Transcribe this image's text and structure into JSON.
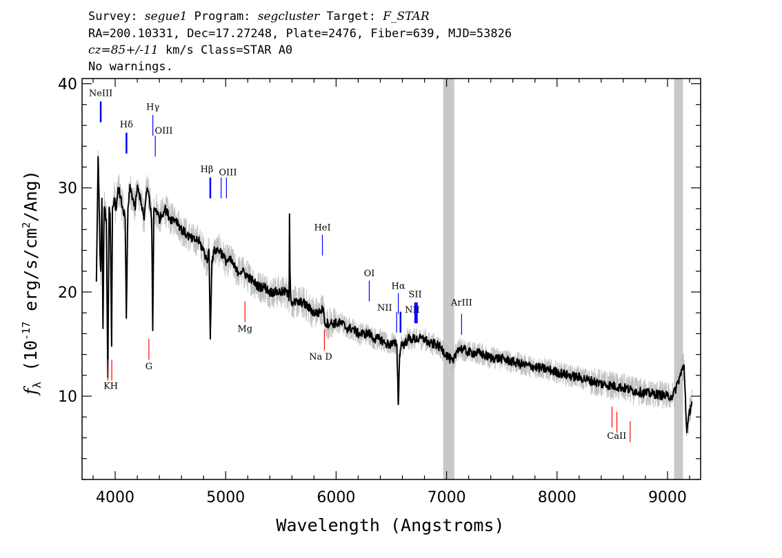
{
  "header": {
    "line1": [
      {
        "text": "Survey: "
      },
      {
        "text": "segue1",
        "italic": true
      },
      {
        "text": " Program: "
      },
      {
        "text": "segcluster",
        "italic": true
      },
      {
        "text": " Target: "
      },
      {
        "text": "F_STAR",
        "italic": true
      }
    ],
    "line2": "RA=200.10331, Dec=17.27248, Plate=2476, Fiber=639, MJD=53826",
    "line3": [
      {
        "text": "cz=85+/-11",
        "italic": true
      },
      {
        "text": " km/s Class=STAR A0"
      }
    ],
    "line4": "No warnings."
  },
  "chart_data": {
    "type": "line",
    "xlabel": "Wavelength (Angstroms)",
    "ylabel_parts": {
      "f": "f",
      "sub": "λ",
      "pre": " (10",
      "exp1": "-17",
      "mid": " erg/s/cm",
      "exp2": "2",
      "post": "/Ang)"
    },
    "xlim": [
      3700,
      9300
    ],
    "ylim": [
      2,
      40.5
    ],
    "xticks": [
      4000,
      5000,
      6000,
      7000,
      8000,
      9000
    ],
    "yticks": [
      10,
      20,
      30,
      40
    ],
    "masked_bands": [
      [
        6970,
        7070
      ],
      [
        9060,
        9140
      ]
    ],
    "colors": {
      "raw": "#c0c0c0",
      "smooth": "#000000",
      "emission": "#0000ff",
      "absorption": "#ff0000",
      "band": "#c8c8c8"
    },
    "series": [
      {
        "role": "smoothed flux",
        "x": [
          3830,
          3845,
          3855,
          3862,
          3870,
          3880,
          3889,
          3900,
          3920,
          3933,
          3945,
          3955,
          3968,
          3975,
          3990,
          4010,
          4030,
          4050,
          4070,
          4090,
          4101,
          4115,
          4135,
          4160,
          4180,
          4200,
          4230,
          4260,
          4290,
          4310,
          4330,
          4340,
          4350,
          4370,
          4400,
          4450,
          4500,
          4550,
          4600,
          4650,
          4700,
          4750,
          4800,
          4830,
          4850,
          4861,
          4875,
          4900,
          4950,
          5000,
          5050,
          5100,
          5150,
          5200,
          5250,
          5300,
          5350,
          5400,
          5450,
          5500,
          5550,
          5575,
          5578,
          5582,
          5590,
          5600,
          5650,
          5700,
          5750,
          5800,
          5850,
          5880,
          5893,
          5900,
          5950,
          6000,
          6050,
          6100,
          6150,
          6200,
          6250,
          6300,
          6350,
          6400,
          6450,
          6500,
          6530,
          6550,
          6563,
          6575,
          6590,
          6620,
          6650,
          6700,
          6750,
          6800,
          6850,
          6900,
          6950,
          7060,
          7100,
          7150,
          7200,
          7300,
          7400,
          7500,
          7600,
          7700,
          7800,
          7900,
          8000,
          8100,
          8200,
          8300,
          8400,
          8500,
          8600,
          8700,
          8800,
          8900,
          9000,
          9050,
          9150,
          9175,
          9200,
          9220
        ],
        "y": [
          21,
          33,
          28,
          24,
          22,
          29,
          16.5,
          28,
          27,
          11.8,
          28,
          27,
          14.8,
          28,
          29,
          28,
          30,
          29,
          28,
          27,
          17.5,
          28,
          30,
          29,
          28,
          30,
          29,
          27,
          30,
          29,
          27,
          16.3,
          28,
          28,
          27,
          28,
          27,
          27,
          26,
          25.5,
          25,
          25,
          24,
          23,
          24,
          15.5,
          23,
          24,
          24,
          23,
          23,
          22,
          22,
          21.5,
          21,
          20.5,
          20.5,
          20,
          20,
          20,
          20,
          19.5,
          27.5,
          22,
          19.5,
          19,
          19,
          19,
          18.5,
          18,
          18,
          18.5,
          17.5,
          17,
          17,
          17,
          17,
          16.5,
          16.5,
          16,
          16,
          16,
          15.5,
          15.5,
          15,
          15,
          15,
          15,
          9.2,
          14,
          15,
          15,
          15.5,
          15.5,
          15.5,
          15.5,
          15,
          15,
          14.6,
          13.2,
          14.6,
          14.5,
          14.2,
          14.1,
          13.7,
          13.6,
          13.3,
          13,
          12.8,
          12.6,
          12.3,
          12,
          11.8,
          11.5,
          11.2,
          11,
          10.8,
          10.5,
          10.3,
          10.2,
          10,
          10,
          13,
          6.5,
          8.5,
          9.5
        ]
      }
    ],
    "emission_lines": [
      {
        "label": "NeIII",
        "x": 3869,
        "y0": 36.3,
        "y1": 38.3,
        "lx": 3869,
        "ly": 38.8,
        "bold": true
      },
      {
        "label": "Hδ",
        "x": 4102,
        "y0": 33.3,
        "y1": 35.3,
        "lx": 4102,
        "ly": 35.8,
        "bold": true
      },
      {
        "label": "Hγ",
        "x": 4341,
        "y0": 35.0,
        "y1": 37.0,
        "lx": 4341,
        "ly": 37.5,
        "bold": false
      },
      {
        "label": "OIII",
        "x": 4363,
        "y0": 33.0,
        "y1": 35.0,
        "lx": 4440,
        "ly": 35.2,
        "bold": false
      },
      {
        "label": "Hβ",
        "x": 4861,
        "y0": 29.0,
        "y1": 31.0,
        "lx": 4830,
        "ly": 31.5,
        "bold": true
      },
      {
        "label": "OIII",
        "x": 4959,
        "y0": 29.0,
        "y1": 31.0,
        "lx": 5020,
        "ly": 31.2,
        "bold": false
      },
      {
        "label": "OIII",
        "x": 5007,
        "y0": 29.0,
        "y1": 31.0,
        "lx": null,
        "ly": null,
        "bold": false
      },
      {
        "label": "HeI",
        "x": 5876,
        "y0": 23.5,
        "y1": 25.5,
        "lx": 5876,
        "ly": 25.9,
        "bold": false
      },
      {
        "label": "OI",
        "x": 6300,
        "y0": 19.1,
        "y1": 21.1,
        "lx": 6300,
        "ly": 21.5,
        "bold": false
      },
      {
        "label": "NII",
        "x": 6548,
        "y0": 16.1,
        "y1": 18.1,
        "lx": 6440,
        "ly": 18.2,
        "bold": false
      },
      {
        "label": "Hα",
        "x": 6563,
        "y0": 17.9,
        "y1": 19.9,
        "lx": 6563,
        "ly": 20.3,
        "bold": false
      },
      {
        "label": "NII",
        "x": 6583,
        "y0": 16.1,
        "y1": 18.1,
        "lx": 6690,
        "ly": 18.0,
        "bold": true
      },
      {
        "label": "SII",
        "x": 6716,
        "y0": 17.0,
        "y1": 19.0,
        "lx": 6716,
        "ly": 19.5,
        "bold": true
      },
      {
        "label": "SII",
        "x": 6731,
        "y0": 17.0,
        "y1": 19.0,
        "lx": null,
        "ly": null,
        "bold": true
      },
      {
        "label": "ArIII",
        "x": 7136,
        "y0": 15.9,
        "y1": 17.9,
        "lx": 7136,
        "ly": 18.7,
        "bold": false
      }
    ],
    "absorption_lines": [
      {
        "label": "K",
        "x": 3934,
        "y0": 11.5,
        "y1": 13.5,
        "lx": 3925,
        "ly": 10.7,
        "bold": false
      },
      {
        "label": "H",
        "x": 3969,
        "y0": 11.5,
        "y1": 13.5,
        "lx": 3990,
        "ly": 10.7,
        "bold": false
      },
      {
        "label": "G",
        "x": 4305,
        "y0": 13.5,
        "y1": 15.5,
        "lx": 4305,
        "ly": 12.6,
        "bold": false
      },
      {
        "label": "Mg",
        "x": 5175,
        "y0": 17.1,
        "y1": 19.1,
        "lx": 5175,
        "ly": 16.2,
        "bold": false
      },
      {
        "label": "Na  D",
        "x": 5894,
        "y0": 14.4,
        "y1": 16.4,
        "lx": 5860,
        "ly": 13.5,
        "bold": false
      },
      {
        "label": "CaII",
        "x": 8498,
        "y0": 7.0,
        "y1": 9.0,
        "lx": 8540,
        "ly": 5.9,
        "bold": false
      },
      {
        "label": "CaII",
        "x": 8542,
        "y0": 6.5,
        "y1": 8.5,
        "lx": null,
        "ly": null,
        "bold": false
      },
      {
        "label": "CaII",
        "x": 8662,
        "y0": 5.6,
        "y1": 7.6,
        "lx": null,
        "ly": null,
        "bold": false
      }
    ]
  }
}
